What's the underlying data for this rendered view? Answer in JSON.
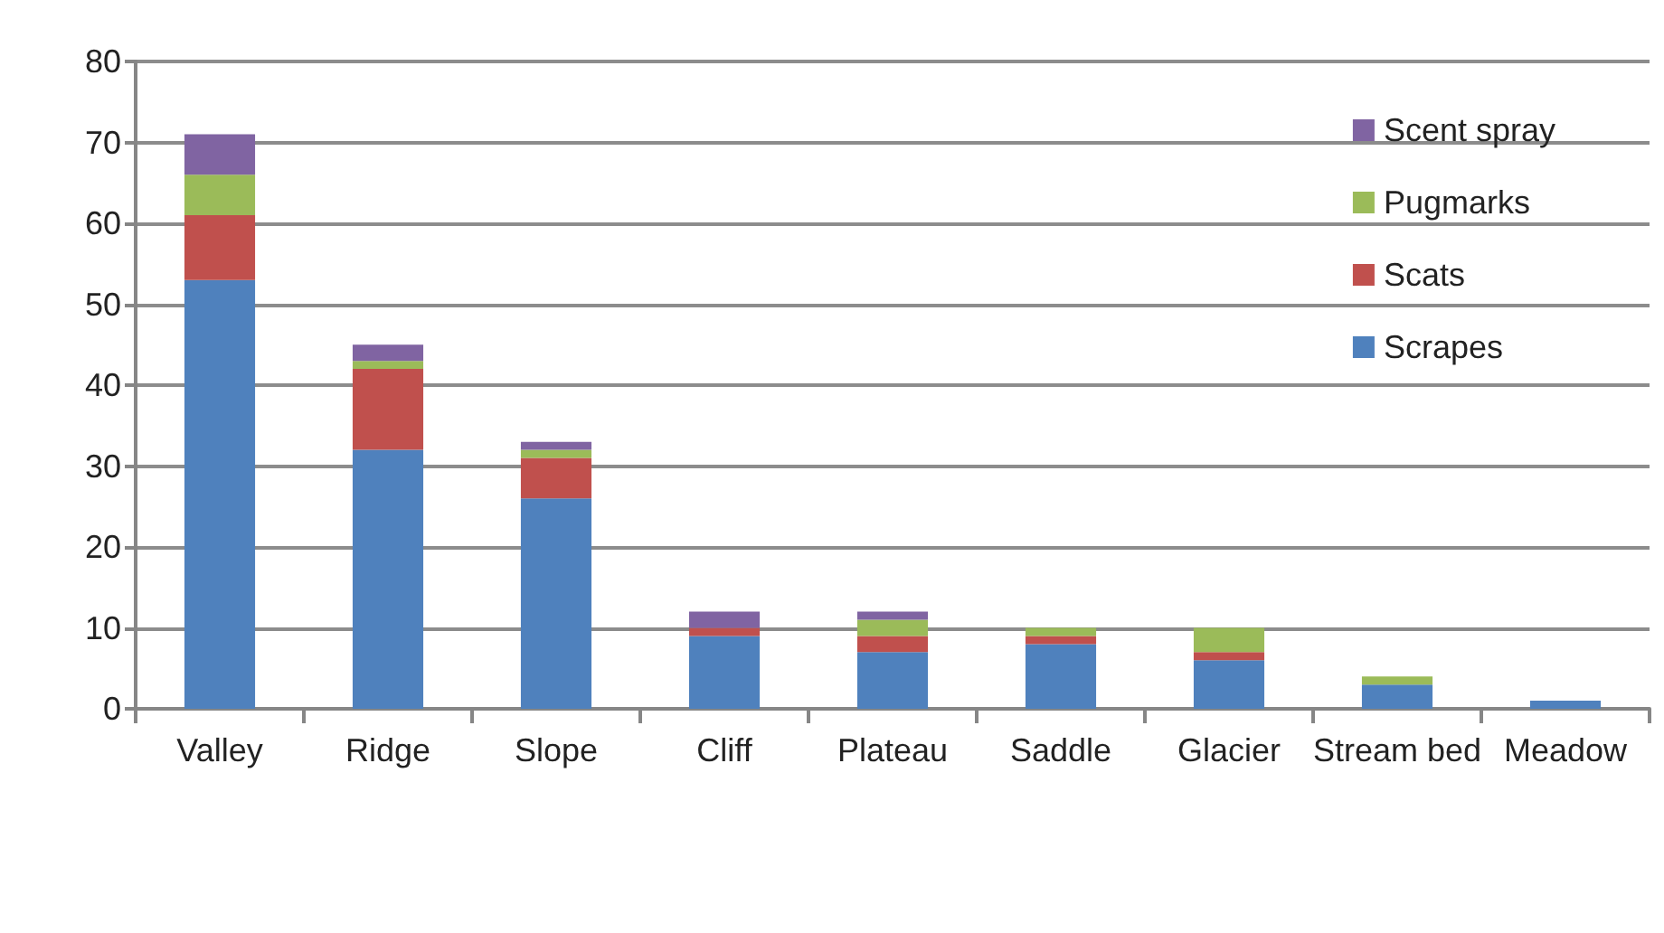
{
  "chart_data": {
    "type": "bar",
    "stacked": true,
    "categories": [
      "Valley",
      "Ridge",
      "Slope",
      "Cliff",
      "Plateau",
      "Saddle",
      "Glacier",
      "Stream bed",
      "Meadow"
    ],
    "series": [
      {
        "name": "Scrapes",
        "color": "#4f81bd",
        "values": [
          53,
          32,
          26,
          9,
          7,
          8,
          6,
          3,
          1
        ]
      },
      {
        "name": "Scats",
        "color": "#c0504d",
        "values": [
          8,
          10,
          5,
          1,
          2,
          1,
          1,
          0,
          0
        ]
      },
      {
        "name": "Pugmarks",
        "color": "#9bbb59",
        "values": [
          5,
          1,
          1,
          0,
          2,
          1,
          3,
          1,
          0
        ]
      },
      {
        "name": "Scent spray",
        "color": "#8064a2",
        "values": [
          5,
          2,
          1,
          2,
          1,
          0,
          0,
          0,
          0
        ]
      }
    ],
    "ylim": [
      0,
      80
    ],
    "yticks": [
      0,
      10,
      20,
      30,
      40,
      50,
      60,
      70,
      80
    ],
    "grid": "y",
    "legend": "top right"
  }
}
